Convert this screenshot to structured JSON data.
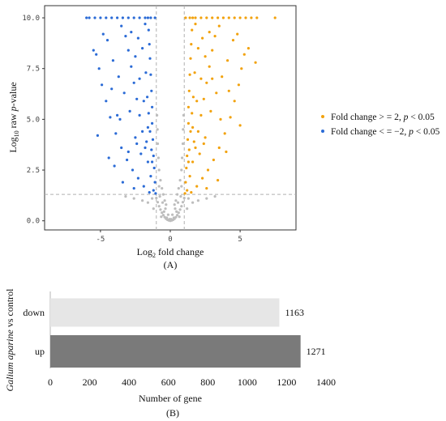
{
  "panel_a_caption": "(A)",
  "panel_b_caption": "(B)",
  "chart_data": [
    {
      "type": "scatter",
      "xlabel_pre": "Log",
      "xlabel_sub": "2",
      "xlabel_post": " fold change",
      "ylabel_pre": "Log",
      "ylabel_sub": "10",
      "ylabel_mid": " raw ",
      "ylabel_italic": "p",
      "ylabel_post": "-value",
      "xlim": [
        -9,
        9
      ],
      "ylim": [
        -0.45,
        10.6
      ],
      "x_ticks": [
        -5,
        0,
        5
      ],
      "y_ticks": [
        0,
        2.5,
        5,
        7.5,
        10
      ],
      "x_tick_labels": [
        "-5",
        "0",
        "5"
      ],
      "y_tick_labels": [
        "0.0",
        "2.5",
        "5.0",
        "7.5",
        "10.0"
      ],
      "threshold_lines": {
        "x": [
          -1,
          1
        ],
        "y": 1.3
      },
      "grid": false,
      "legend_position": "right",
      "series": [
        {
          "name": "Fold change >= 2, p < 0.05",
          "name_pre": "Fold change > = 2, ",
          "name_italic": "p",
          "name_post": " < 0.05",
          "color": "#F2A20D"
        },
        {
          "name": "Fold change <= −2, p < 0.05",
          "name_pre": "Fold change < = −2, ",
          "name_italic": "p",
          "name_post": " < 0.05",
          "color": "#2B6BD6"
        },
        {
          "color": "#BDBDBD"
        }
      ],
      "points": {
        "up": [
          [
            1.05,
            1.35
          ],
          [
            1.1,
            1.9
          ],
          [
            1.15,
            2.6
          ],
          [
            1.2,
            3.2
          ],
          [
            1.25,
            4.0
          ],
          [
            1.3,
            4.8
          ],
          [
            1.3,
            5.6
          ],
          [
            1.35,
            6.4
          ],
          [
            1.4,
            7.2
          ],
          [
            1.45,
            8.0
          ],
          [
            1.5,
            8.7
          ],
          [
            1.55,
            9.4
          ],
          [
            1.6,
            10
          ],
          [
            1.2,
            1.5
          ],
          [
            1.4,
            2.2
          ],
          [
            1.6,
            2.9
          ],
          [
            1.8,
            3.6
          ],
          [
            2.0,
            4.4
          ],
          [
            2.2,
            5.2
          ],
          [
            2.4,
            6.0
          ],
          [
            2.6,
            6.8
          ],
          [
            2.8,
            7.6
          ],
          [
            3.0,
            8.4
          ],
          [
            3.2,
            9.1
          ],
          [
            1.5,
            1.4
          ],
          [
            1.9,
            1.7
          ],
          [
            2.3,
            2.1
          ],
          [
            2.7,
            2.5
          ],
          [
            3.1,
            3.0
          ],
          [
            3.5,
            3.6
          ],
          [
            3.9,
            4.3
          ],
          [
            4.3,
            5.1
          ],
          [
            4.6,
            5.9
          ],
          [
            4.9,
            6.7
          ],
          [
            5.1,
            7.5
          ],
          [
            5.3,
            8.2
          ],
          [
            1.7,
            3.9
          ],
          [
            2.1,
            3.3
          ],
          [
            2.5,
            4.1
          ],
          [
            2.9,
            5.4
          ],
          [
            3.3,
            6.3
          ],
          [
            3.7,
            7.1
          ],
          [
            4.1,
            7.9
          ],
          [
            4.5,
            8.9
          ],
          [
            1.3,
            2.9
          ],
          [
            1.6,
            4.6
          ],
          [
            1.9,
            5.9
          ],
          [
            2.2,
            7.0
          ],
          [
            2.5,
            8.1
          ],
          [
            2.8,
            9.3
          ],
          [
            1.8,
            9.7
          ],
          [
            2.3,
            9.0
          ],
          [
            3.5,
            9.6
          ],
          [
            4.8,
            9.2
          ],
          [
            5.6,
            8.5
          ],
          [
            6.1,
            7.8
          ],
          [
            5.0,
            4.7
          ],
          [
            4.0,
            3.4
          ],
          [
            3.4,
            2.0
          ],
          [
            2.6,
            1.6
          ],
          [
            1.1,
            10
          ],
          [
            1.4,
            10
          ],
          [
            1.8,
            10
          ],
          [
            2.2,
            10
          ],
          [
            2.6,
            10
          ],
          [
            3.0,
            10
          ],
          [
            3.4,
            10
          ],
          [
            3.8,
            10
          ],
          [
            4.2,
            10
          ],
          [
            4.6,
            10
          ],
          [
            5.0,
            10
          ],
          [
            5.4,
            10
          ],
          [
            5.8,
            10
          ],
          [
            6.2,
            10
          ],
          [
            7.5,
            10
          ],
          [
            1.35,
            3.5
          ],
          [
            1.45,
            4.4
          ],
          [
            1.55,
            5.3
          ],
          [
            1.65,
            6.1
          ],
          [
            1.75,
            7.3
          ],
          [
            2.0,
            8.5
          ],
          [
            2.4,
            3.8
          ],
          [
            3.6,
            5.0
          ],
          [
            4.2,
            6.4
          ],
          [
            3.0,
            7.0
          ]
        ],
        "down": [
          [
            -1.05,
            1.35
          ],
          [
            -1.1,
            1.9
          ],
          [
            -1.15,
            2.6
          ],
          [
            -1.2,
            3.2
          ],
          [
            -1.25,
            4.0
          ],
          [
            -1.3,
            4.8
          ],
          [
            -1.3,
            5.6
          ],
          [
            -1.35,
            6.4
          ],
          [
            -1.4,
            7.2
          ],
          [
            -1.45,
            8.0
          ],
          [
            -1.5,
            8.7
          ],
          [
            -1.55,
            9.4
          ],
          [
            -1.6,
            10
          ],
          [
            -1.2,
            1.5
          ],
          [
            -1.4,
            2.2
          ],
          [
            -1.6,
            2.9
          ],
          [
            -1.8,
            3.6
          ],
          [
            -2.0,
            4.4
          ],
          [
            -2.2,
            5.2
          ],
          [
            -2.4,
            6.0
          ],
          [
            -2.6,
            6.8
          ],
          [
            -2.8,
            7.6
          ],
          [
            -3.0,
            8.4
          ],
          [
            -3.2,
            9.1
          ],
          [
            -1.5,
            1.4
          ],
          [
            -1.9,
            1.7
          ],
          [
            -2.3,
            2.1
          ],
          [
            -2.7,
            2.5
          ],
          [
            -3.1,
            3.0
          ],
          [
            -3.5,
            3.6
          ],
          [
            -3.9,
            4.3
          ],
          [
            -4.3,
            5.1
          ],
          [
            -4.6,
            5.9
          ],
          [
            -4.9,
            6.7
          ],
          [
            -5.1,
            7.5
          ],
          [
            -5.3,
            8.2
          ],
          [
            -1.7,
            3.9
          ],
          [
            -2.1,
            3.3
          ],
          [
            -2.5,
            4.1
          ],
          [
            -2.9,
            5.4
          ],
          [
            -3.3,
            6.3
          ],
          [
            -3.7,
            7.1
          ],
          [
            -4.1,
            7.9
          ],
          [
            -4.5,
            8.9
          ],
          [
            -1.3,
            2.9
          ],
          [
            -1.6,
            4.6
          ],
          [
            -1.9,
            5.9
          ],
          [
            -2.2,
            7.0
          ],
          [
            -2.5,
            8.1
          ],
          [
            -2.8,
            9.3
          ],
          [
            -1.8,
            9.7
          ],
          [
            -2.3,
            9.0
          ],
          [
            -3.5,
            9.6
          ],
          [
            -4.8,
            9.2
          ],
          [
            -5.5,
            8.4
          ],
          [
            -4.2,
            6.5
          ],
          [
            -3.8,
            5.2
          ],
          [
            -3.0,
            3.4
          ],
          [
            -2.6,
            1.6
          ],
          [
            -1.1,
            10
          ],
          [
            -1.4,
            10
          ],
          [
            -1.8,
            10
          ],
          [
            -2.2,
            10
          ],
          [
            -2.6,
            10
          ],
          [
            -3.0,
            10
          ],
          [
            -3.4,
            10
          ],
          [
            -3.8,
            10
          ],
          [
            -4.2,
            10
          ],
          [
            -4.6,
            10
          ],
          [
            -5.0,
            10
          ],
          [
            -5.4,
            10
          ],
          [
            -5.8,
            10
          ],
          [
            -6.0,
            10
          ],
          [
            -1.35,
            3.5
          ],
          [
            -1.45,
            4.4
          ],
          [
            -1.55,
            5.3
          ],
          [
            -1.65,
            6.1
          ],
          [
            -1.75,
            7.3
          ],
          [
            -2.0,
            8.5
          ],
          [
            -2.4,
            3.8
          ],
          [
            -3.6,
            5.0
          ],
          [
            -4.0,
            2.7
          ],
          [
            -3.4,
            1.9
          ],
          [
            -5.2,
            4.2
          ],
          [
            -4.4,
            3.1
          ]
        ],
        "ns": [
          [
            0,
            0
          ],
          [
            0.1,
            0.02
          ],
          [
            -0.1,
            0.02
          ],
          [
            0.2,
            0.05
          ],
          [
            -0.2,
            0.05
          ],
          [
            0.3,
            0.1
          ],
          [
            -0.3,
            0.1
          ],
          [
            0.4,
            0.18
          ],
          [
            -0.4,
            0.18
          ],
          [
            0.5,
            0.28
          ],
          [
            -0.5,
            0.28
          ],
          [
            0.6,
            0.4
          ],
          [
            -0.6,
            0.4
          ],
          [
            0.7,
            0.55
          ],
          [
            -0.7,
            0.55
          ],
          [
            0.8,
            0.72
          ],
          [
            -0.8,
            0.72
          ],
          [
            0.9,
            0.92
          ],
          [
            -0.9,
            0.92
          ],
          [
            1.0,
            1.12
          ],
          [
            -1.0,
            1.12
          ],
          [
            0.15,
            0.3
          ],
          [
            -0.15,
            0.3
          ],
          [
            0.35,
            0.6
          ],
          [
            -0.35,
            0.6
          ],
          [
            0.55,
            0.9
          ],
          [
            -0.55,
            0.9
          ],
          [
            0.75,
            1.2
          ],
          [
            -0.75,
            1.2
          ],
          [
            0.6,
            1.6
          ],
          [
            -0.6,
            1.6
          ],
          [
            0.7,
            2.0
          ],
          [
            -0.7,
            2.0
          ],
          [
            0.8,
            2.5
          ],
          [
            -0.8,
            2.5
          ],
          [
            0.85,
            3.1
          ],
          [
            -0.85,
            3.1
          ],
          [
            0.9,
            3.8
          ],
          [
            -0.9,
            3.8
          ],
          [
            0.92,
            4.5
          ],
          [
            -0.92,
            4.5
          ],
          [
            0.95,
            5.2
          ],
          [
            -0.95,
            5.2
          ],
          [
            0.5,
            1.3
          ],
          [
            -0.5,
            1.3
          ],
          [
            0.25,
            0.15
          ],
          [
            -0.25,
            0.15
          ],
          [
            1.3,
            1.1
          ],
          [
            -1.3,
            1.1
          ],
          [
            1.6,
            0.9
          ],
          [
            -1.6,
            0.9
          ],
          [
            2.0,
            1.0
          ],
          [
            -2.0,
            1.0
          ],
          [
            2.6,
            1.1
          ],
          [
            -2.6,
            1.1
          ],
          [
            3.2,
            1.2
          ],
          [
            -3.2,
            1.2
          ],
          [
            1.2,
            0.6
          ],
          [
            -1.2,
            0.6
          ],
          [
            0.45,
            0.45
          ],
          [
            -0.45,
            0.45
          ],
          [
            0.65,
            0.2
          ],
          [
            -0.65,
            0.2
          ],
          [
            0.05,
            0.08
          ],
          [
            -0.05,
            0.08
          ],
          [
            0.3,
            0.8
          ],
          [
            -0.3,
            0.8
          ],
          [
            0.4,
            1.0
          ],
          [
            -0.4,
            1.0
          ],
          [
            0.8,
            1.7
          ],
          [
            -0.8,
            1.7
          ]
        ]
      }
    },
    {
      "type": "bar",
      "orientation": "horizontal",
      "categories": [
        "down",
        "up"
      ],
      "values": [
        1163,
        1271
      ],
      "value_labels": [
        "1163",
        "1271"
      ],
      "colors": [
        "#E6E6E6",
        "#7A7A7A"
      ],
      "xlim": [
        0,
        1400
      ],
      "x_ticks": [
        0,
        200,
        400,
        600,
        800,
        1000,
        1200,
        1400
      ],
      "x_tick_labels": [
        "0",
        "200",
        "400",
        "600",
        "800",
        "1000",
        "1200",
        "1400"
      ],
      "xlabel": "Number of gene",
      "ylabel_italic": "Galium aparine",
      "ylabel_post": " vs control"
    }
  ]
}
